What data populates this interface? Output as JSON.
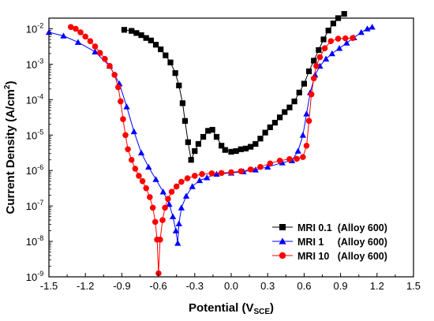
{
  "chart_data": {
    "type": "scatter",
    "title": "",
    "xlabel": {
      "main": "Potential (V",
      "sub": "SCE",
      "close": ")"
    },
    "ylabel": {
      "main": "Current Density (A/cm",
      "sup": "2",
      "close": ")"
    },
    "xlim": [
      -1.5,
      1.5
    ],
    "ylim_log10": [
      -9,
      -1.7
    ],
    "y_scale": "log",
    "grid": false,
    "legend_position": "bottom-right",
    "x_tick_labels": [
      "-1.5",
      "-1.2",
      "-0.9",
      "-0.6",
      "-0.3",
      "0.0",
      "0.3",
      "0.6",
      "0.9",
      "1.2",
      "1.5"
    ],
    "x_ticks": [
      -1.5,
      -1.2,
      -0.9,
      -0.6,
      -0.3,
      0.0,
      0.3,
      0.6,
      0.9,
      1.2,
      1.5
    ],
    "y_tick_labels": [
      {
        "base": "10",
        "exp": "-2"
      },
      {
        "base": "10",
        "exp": "-3"
      },
      {
        "base": "10",
        "exp": "-4"
      },
      {
        "base": "10",
        "exp": "-5"
      },
      {
        "base": "10",
        "exp": "-6"
      },
      {
        "base": "10",
        "exp": "-7"
      },
      {
        "base": "10",
        "exp": "-8"
      },
      {
        "base": "10",
        "exp": "-9"
      }
    ],
    "y_ticks_log10": [
      -2,
      -3,
      -4,
      -5,
      -6,
      -7,
      -8,
      -9
    ],
    "series": [
      {
        "name": "MRI 0.1  (Alloy 600)",
        "marker": "square",
        "color": "#000000",
        "points": [
          [
            -0.88,
            -2.03
          ],
          [
            -0.82,
            -2.06
          ],
          [
            -0.78,
            -2.12
          ],
          [
            -0.74,
            -2.18
          ],
          [
            -0.7,
            -2.26
          ],
          [
            -0.66,
            -2.33
          ],
          [
            -0.62,
            -2.45
          ],
          [
            -0.58,
            -2.58
          ],
          [
            -0.54,
            -2.75
          ],
          [
            -0.5,
            -2.95
          ],
          [
            -0.46,
            -3.25
          ],
          [
            -0.43,
            -3.6
          ],
          [
            -0.4,
            -4.1
          ],
          [
            -0.38,
            -4.6
          ],
          [
            -0.355,
            -5.2
          ],
          [
            -0.33,
            -5.7
          ],
          [
            -0.3,
            -5.45
          ],
          [
            -0.27,
            -5.25
          ],
          [
            -0.23,
            -5.05
          ],
          [
            -0.19,
            -4.88
          ],
          [
            -0.155,
            -4.85
          ],
          [
            -0.12,
            -5.05
          ],
          [
            -0.08,
            -5.3
          ],
          [
            -0.05,
            -5.42
          ],
          [
            0.0,
            -5.47
          ],
          [
            0.04,
            -5.45
          ],
          [
            0.08,
            -5.4
          ],
          [
            0.12,
            -5.38
          ],
          [
            0.16,
            -5.33
          ],
          [
            0.2,
            -5.25
          ],
          [
            0.24,
            -5.1
          ],
          [
            0.28,
            -4.93
          ],
          [
            0.32,
            -4.78
          ],
          [
            0.36,
            -4.65
          ],
          [
            0.4,
            -4.5
          ],
          [
            0.44,
            -4.35
          ],
          [
            0.48,
            -4.22
          ],
          [
            0.52,
            -4.05
          ],
          [
            0.56,
            -3.8
          ],
          [
            0.6,
            -3.55
          ],
          [
            0.64,
            -3.2
          ],
          [
            0.68,
            -2.9
          ],
          [
            0.72,
            -2.6
          ],
          [
            0.76,
            -2.3
          ],
          [
            0.8,
            -2.05
          ],
          [
            0.84,
            -1.85
          ],
          [
            0.88,
            -1.7
          ],
          [
            0.93,
            -1.58
          ]
        ]
      },
      {
        "name": "MRI 1     (Alloy 600)",
        "marker": "triangle",
        "color": "#0000ff",
        "points": [
          [
            -1.5,
            -2.1
          ],
          [
            -1.38,
            -2.2
          ],
          [
            -1.26,
            -2.38
          ],
          [
            -1.12,
            -2.65
          ],
          [
            -1.0,
            -3.05
          ],
          [
            -0.92,
            -3.55
          ],
          [
            -0.86,
            -4.2
          ],
          [
            -0.8,
            -4.9
          ],
          [
            -0.74,
            -5.5
          ],
          [
            -0.68,
            -5.9
          ],
          [
            -0.62,
            -6.25
          ],
          [
            -0.56,
            -6.6
          ],
          [
            -0.51,
            -6.95
          ],
          [
            -0.48,
            -7.3
          ],
          [
            -0.455,
            -7.7
          ],
          [
            -0.44,
            -8.05
          ],
          [
            -0.43,
            -7.5
          ],
          [
            -0.41,
            -7.05
          ],
          [
            -0.37,
            -6.72
          ],
          [
            -0.32,
            -6.45
          ],
          [
            -0.26,
            -6.28
          ],
          [
            -0.2,
            -6.2
          ],
          [
            -0.12,
            -6.1
          ],
          [
            0.0,
            -6.07
          ],
          [
            0.1,
            -6.03
          ],
          [
            0.2,
            -5.98
          ],
          [
            0.3,
            -5.9
          ],
          [
            0.42,
            -5.78
          ],
          [
            0.5,
            -5.72
          ],
          [
            0.55,
            -5.45
          ],
          [
            0.59,
            -5.0
          ],
          [
            0.62,
            -4.4
          ],
          [
            0.65,
            -3.8
          ],
          [
            0.69,
            -3.3
          ],
          [
            0.73,
            -3.05
          ],
          [
            0.78,
            -2.85
          ],
          [
            0.83,
            -2.7
          ],
          [
            0.89,
            -2.55
          ],
          [
            0.95,
            -2.4
          ],
          [
            1.01,
            -2.25
          ],
          [
            1.07,
            -2.1
          ],
          [
            1.12,
            -2.0
          ],
          [
            1.16,
            -1.95
          ]
        ]
      },
      {
        "name": "MRI 10   (Alloy 600)",
        "marker": "circle",
        "color": "#ff0000",
        "points": [
          [
            -1.32,
            -1.95
          ],
          [
            -1.28,
            -2.0
          ],
          [
            -1.24,
            -2.1
          ],
          [
            -1.2,
            -2.22
          ],
          [
            -1.16,
            -2.35
          ],
          [
            -1.12,
            -2.5
          ],
          [
            -1.08,
            -2.68
          ],
          [
            -1.04,
            -2.85
          ],
          [
            -1.0,
            -3.05
          ],
          [
            -0.96,
            -3.3
          ],
          [
            -0.93,
            -3.65
          ],
          [
            -0.91,
            -4.05
          ],
          [
            -0.89,
            -4.55
          ],
          [
            -0.87,
            -5.0
          ],
          [
            -0.85,
            -5.4
          ],
          [
            -0.82,
            -5.7
          ],
          [
            -0.79,
            -5.95
          ],
          [
            -0.76,
            -6.15
          ],
          [
            -0.73,
            -6.3
          ],
          [
            -0.7,
            -6.5
          ],
          [
            -0.67,
            -6.75
          ],
          [
            -0.645,
            -7.05
          ],
          [
            -0.625,
            -7.45
          ],
          [
            -0.61,
            -7.95
          ],
          [
            -0.598,
            -8.9
          ],
          [
            -0.585,
            -7.95
          ],
          [
            -0.565,
            -7.4
          ],
          [
            -0.545,
            -7.05
          ],
          [
            -0.52,
            -6.8
          ],
          [
            -0.49,
            -6.6
          ],
          [
            -0.45,
            -6.45
          ],
          [
            -0.41,
            -6.32
          ],
          [
            -0.36,
            -6.22
          ],
          [
            -0.3,
            -6.15
          ],
          [
            -0.24,
            -6.1
          ],
          [
            -0.16,
            -6.08
          ],
          [
            -0.08,
            -6.07
          ],
          [
            0.0,
            -6.05
          ],
          [
            0.08,
            -6.02
          ],
          [
            0.16,
            -5.97
          ],
          [
            0.24,
            -5.9
          ],
          [
            0.32,
            -5.8
          ],
          [
            0.4,
            -5.72
          ],
          [
            0.48,
            -5.68
          ],
          [
            0.54,
            -5.67
          ],
          [
            0.59,
            -5.62
          ],
          [
            0.62,
            -5.3
          ],
          [
            0.64,
            -4.6
          ],
          [
            0.66,
            -3.85
          ],
          [
            0.68,
            -3.4
          ],
          [
            0.7,
            -3.05
          ],
          [
            0.73,
            -2.8
          ],
          [
            0.77,
            -2.55
          ],
          [
            0.82,
            -2.35
          ],
          [
            0.88,
            -2.28
          ],
          [
            0.94,
            -2.27
          ],
          [
            1.0,
            -2.26
          ]
        ]
      }
    ]
  }
}
